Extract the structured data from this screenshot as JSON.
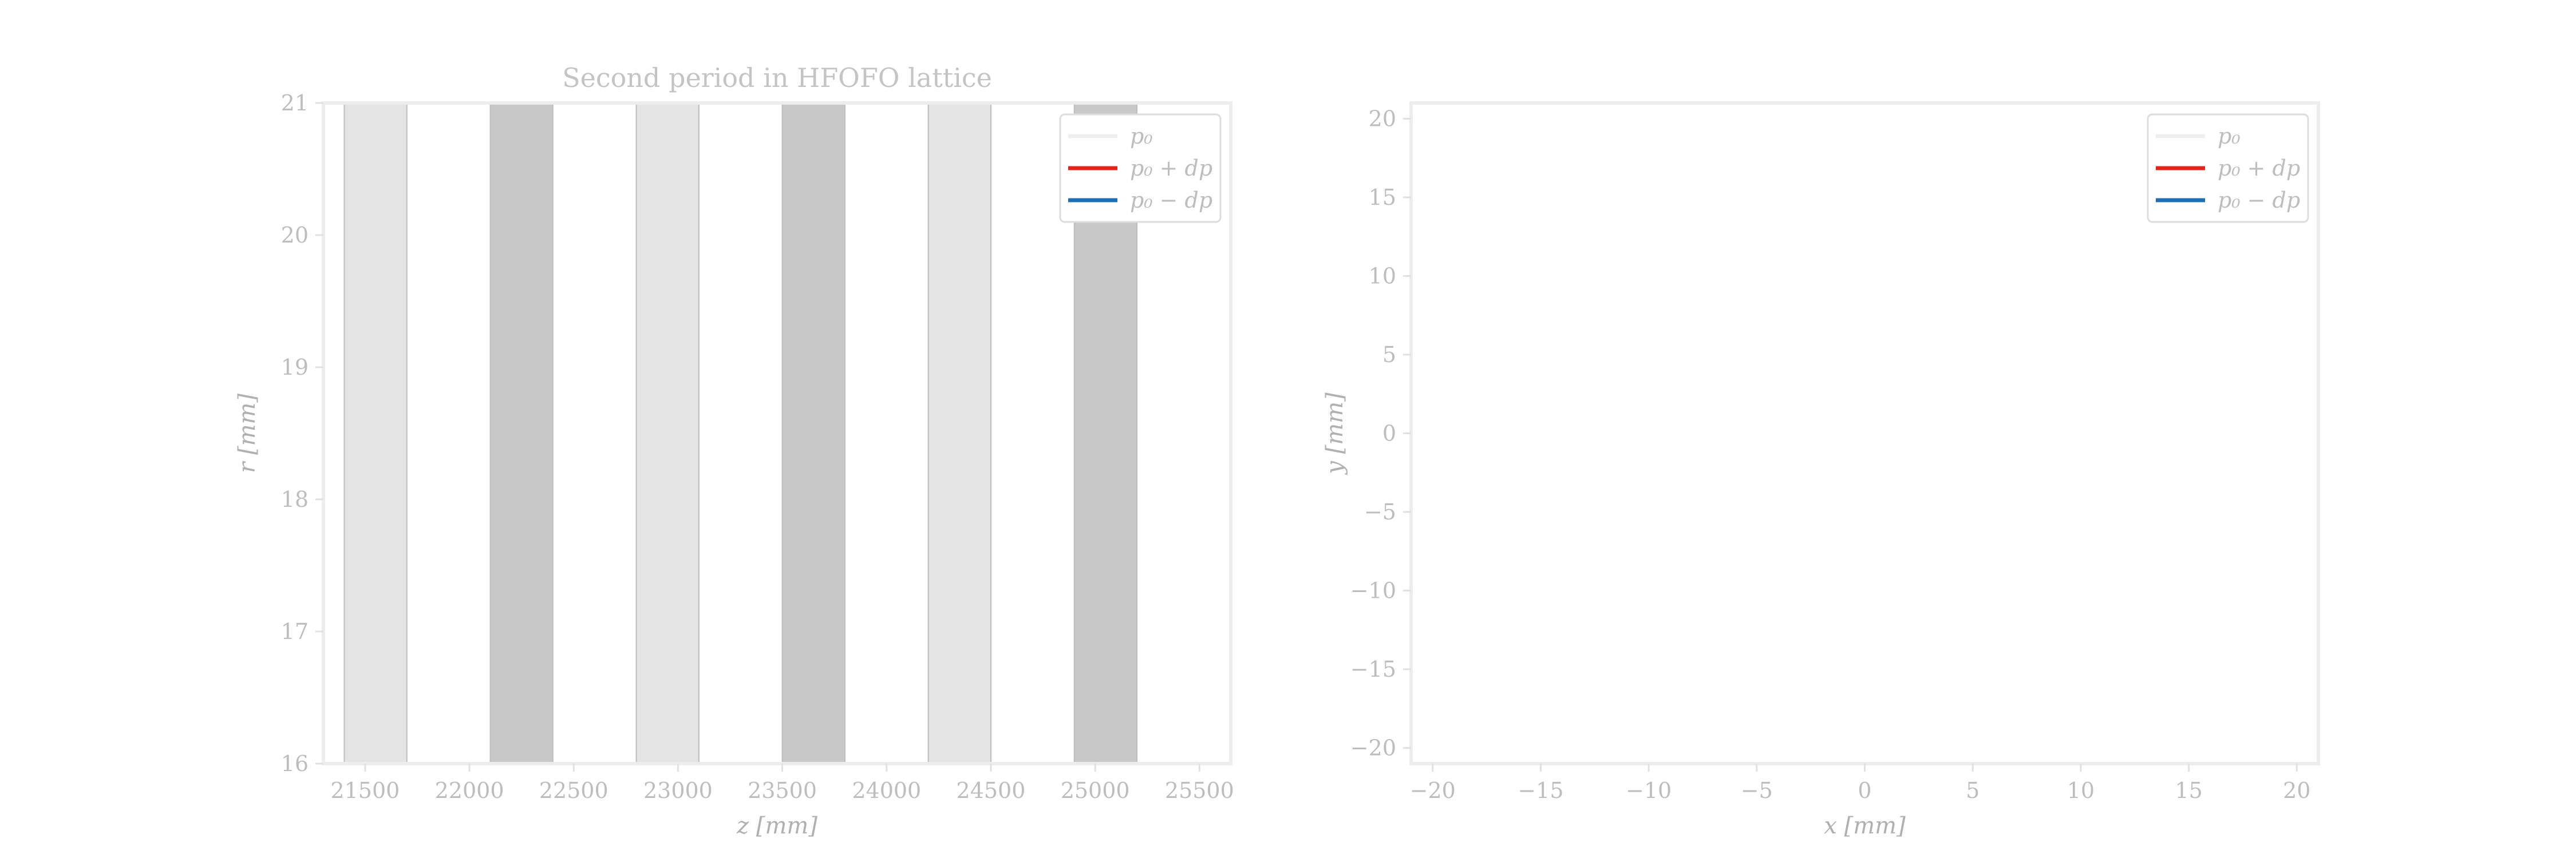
{
  "chart_data": [
    {
      "type": "line",
      "title": "Second period in HFOFO lattice",
      "xlabel": "z [mm]",
      "ylabel": "r [mm]",
      "xlim": [
        21300,
        25650
      ],
      "ylim": [
        16,
        21
      ],
      "xticks": [
        21500,
        22000,
        22500,
        23000,
        23500,
        24000,
        24500,
        25000,
        25500
      ],
      "yticks": [
        16,
        17,
        18,
        19,
        20,
        21
      ],
      "xtick_labels": [
        "21500",
        "22000",
        "22500",
        "23000",
        "23500",
        "24000",
        "24500",
        "25000",
        "25500"
      ],
      "ytick_labels": [
        "16",
        "17",
        "18",
        "19",
        "20",
        "21"
      ],
      "grid": false,
      "legend_position": "top-right",
      "bands": [
        {
          "x0": 21400,
          "x1": 21700,
          "color": "#e4e4e4"
        },
        {
          "x0": 22100,
          "x1": 22400,
          "color": "#c8c8c8"
        },
        {
          "x0": 22800,
          "x1": 23100,
          "color": "#e4e4e4"
        },
        {
          "x0": 23500,
          "x1": 23800,
          "color": "#c8c8c8"
        },
        {
          "x0": 24200,
          "x1": 24500,
          "color": "#e4e4e4"
        },
        {
          "x0": 24900,
          "x1": 25200,
          "color": "#c8c8c8"
        }
      ],
      "series": [
        {
          "name": "p₀",
          "color": "#eeeeee",
          "points": []
        },
        {
          "name": "p₀ + dp",
          "color": "#e3241b",
          "points": []
        },
        {
          "name": "p₀ − dp",
          "color": "#1f6fb4",
          "points": []
        }
      ]
    },
    {
      "type": "line",
      "title": "",
      "xlabel": "x [mm]",
      "ylabel": "y [mm]",
      "xlim": [
        -21,
        21
      ],
      "ylim": [
        -21,
        21
      ],
      "xticks": [
        -20,
        -15,
        -10,
        -5,
        0,
        5,
        10,
        15,
        20
      ],
      "yticks": [
        -20,
        -15,
        -10,
        -5,
        0,
        5,
        10,
        15,
        20
      ],
      "xtick_labels": [
        "−20",
        "−15",
        "−10",
        "−5",
        "0",
        "5",
        "10",
        "15",
        "20"
      ],
      "ytick_labels": [
        "−20",
        "−15",
        "−10",
        "−5",
        "0",
        "5",
        "10",
        "15",
        "20"
      ],
      "grid": false,
      "legend_position": "top-right",
      "bands": [],
      "series": [
        {
          "name": "p₀",
          "color": "#eeeeee",
          "points": []
        },
        {
          "name": "p₀ + dp",
          "color": "#e3241b",
          "points": []
        },
        {
          "name": "p₀ − dp",
          "color": "#1f6fb4",
          "points": []
        }
      ]
    }
  ]
}
